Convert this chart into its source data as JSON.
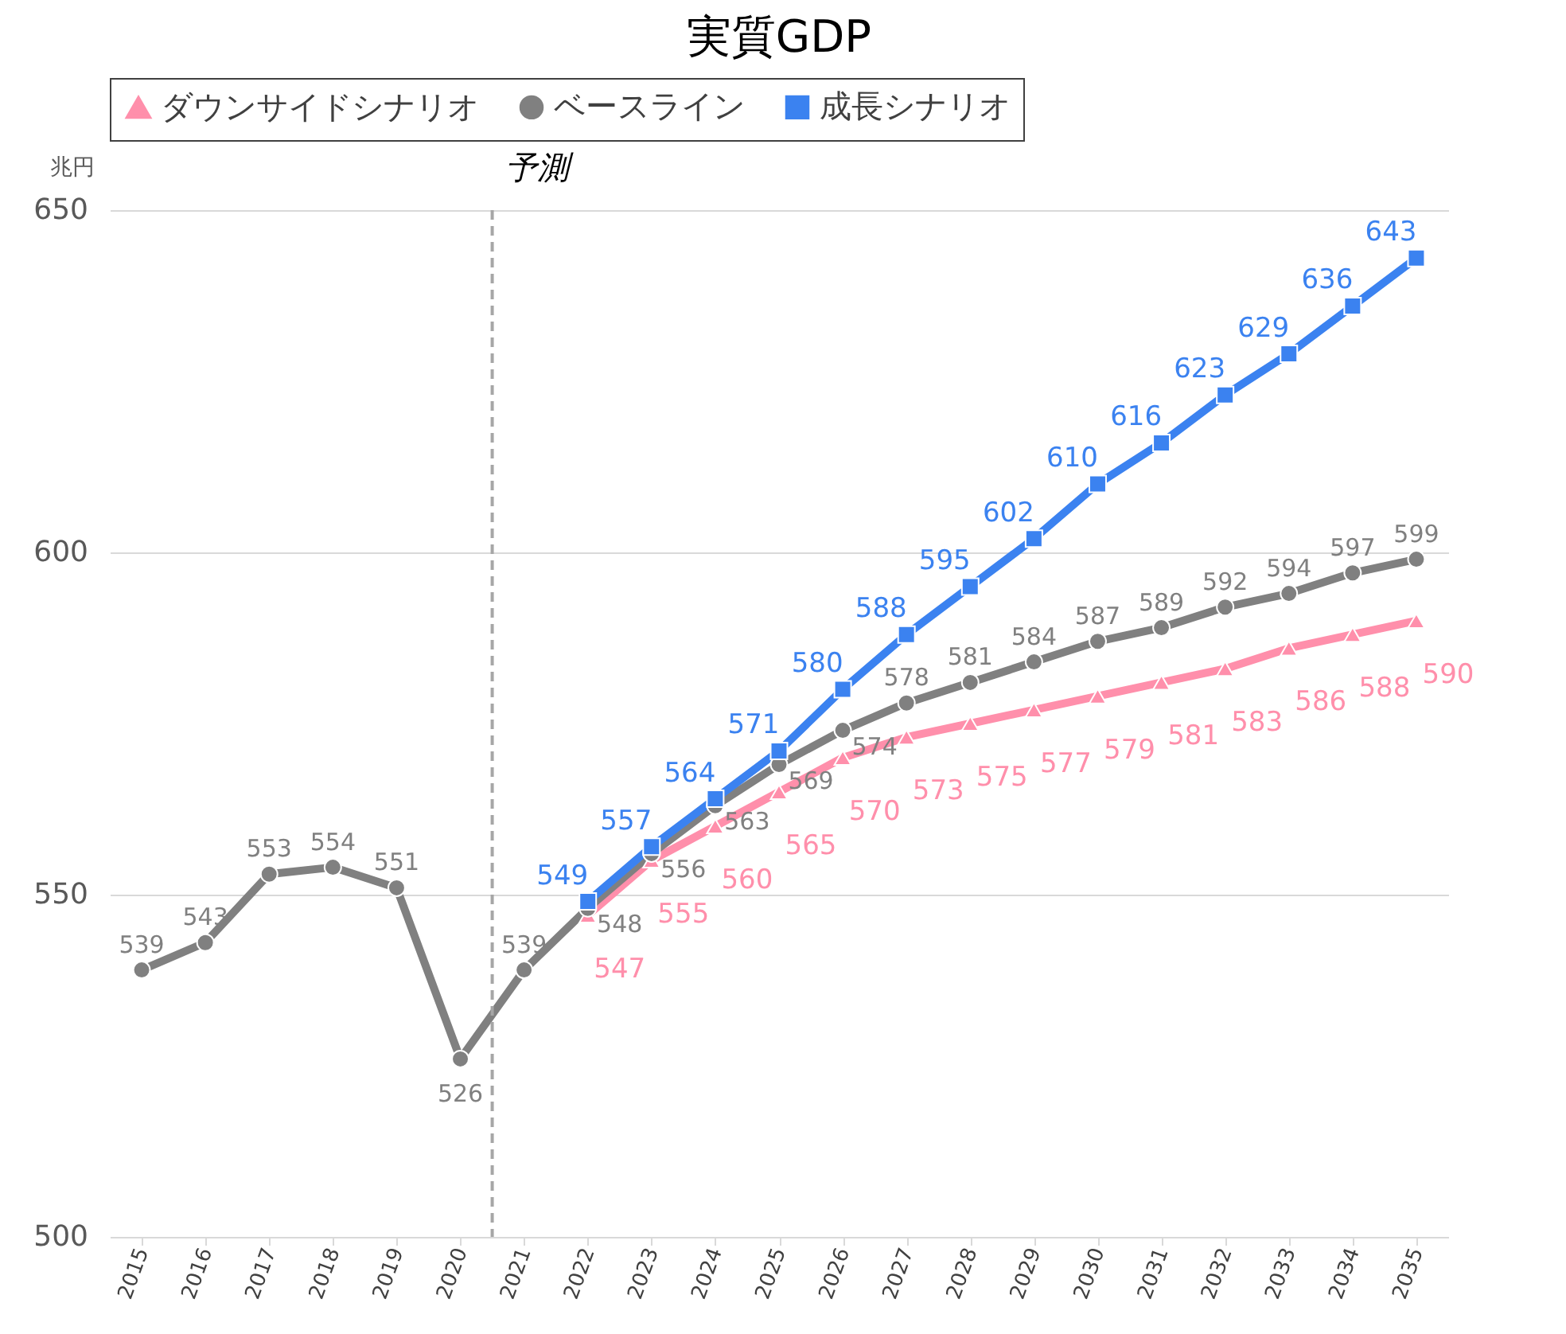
{
  "chart_data": {
    "type": "line",
    "title": "実質GDP",
    "ylabel": "兆円",
    "x": [
      2015,
      2016,
      2017,
      2018,
      2019,
      2020,
      2021,
      2022,
      2023,
      2024,
      2025,
      2026,
      2027,
      2028,
      2029,
      2030,
      2031,
      2032,
      2033,
      2034,
      2035
    ],
    "xlim": [
      2014.5,
      2035.5
    ],
    "xticks": [
      2015,
      2016,
      2017,
      2018,
      2019,
      2020,
      2021,
      2022,
      2023,
      2024,
      2025,
      2026,
      2027,
      2028,
      2029,
      2030,
      2031,
      2032,
      2033,
      2034,
      2035
    ],
    "ylim": [
      500,
      650
    ],
    "yticks": [
      500,
      550,
      600,
      650
    ],
    "grid": "y",
    "legend": "top",
    "data_labels": true,
    "line_style": "solid",
    "series": [
      {
        "name": "ダウンサイドシナリオ",
        "color": "#ff8fab",
        "marker": "triangle",
        "x": [
          2022,
          2023,
          2024,
          2025,
          2026,
          2027,
          2028,
          2029,
          2030,
          2031,
          2032,
          2033,
          2034,
          2035
        ],
        "values": [
          547,
          555,
          560,
          565,
          570,
          573,
          575,
          577,
          579,
          581,
          583,
          586,
          588,
          590
        ]
      },
      {
        "name": "ベースライン",
        "color": "#808080",
        "marker": "circle",
        "values": [
          539,
          543,
          553,
          554,
          551,
          526,
          539,
          548,
          556,
          563,
          569,
          574,
          578,
          581,
          584,
          587,
          589,
          592,
          594,
          597,
          599
        ]
      },
      {
        "name": "成長シナリオ",
        "color": "#3b82f0",
        "marker": "square",
        "x": [
          2022,
          2023,
          2024,
          2025,
          2026,
          2027,
          2028,
          2029,
          2030,
          2031,
          2032,
          2033,
          2034,
          2035
        ],
        "values": [
          549,
          557,
          564,
          571,
          580,
          588,
          595,
          602,
          610,
          616,
          623,
          629,
          636,
          643
        ]
      }
    ],
    "ref_lines": [
      {
        "axis": "x",
        "value": 2020.5,
        "label": "予測",
        "line_style": "dashed",
        "color": "#a6a6a6"
      }
    ]
  }
}
